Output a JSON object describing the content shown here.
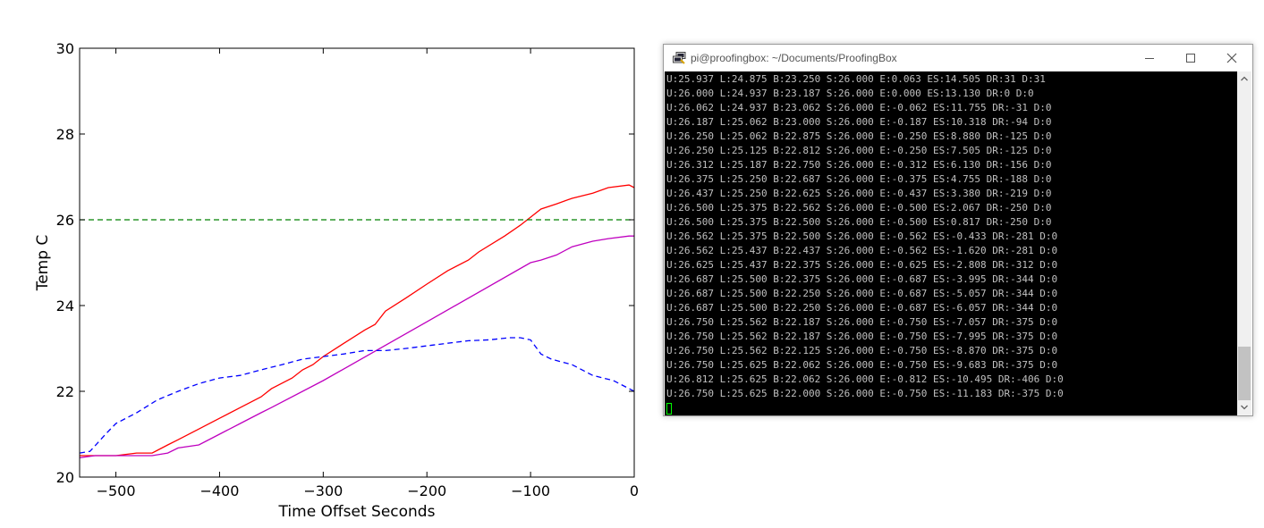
{
  "chart_data": {
    "type": "line",
    "title": "",
    "xlabel": "Time Offset Seconds",
    "ylabel": "Temp C",
    "xlim": [
      -535,
      0
    ],
    "ylim": [
      20,
      30
    ],
    "xticks": [
      -500,
      -400,
      -300,
      -200,
      -100,
      0
    ],
    "xtick_labels": [
      "−500",
      "−400",
      "−300",
      "−200",
      "−100",
      "0"
    ],
    "yticks": [
      20,
      22,
      24,
      26,
      28,
      30
    ],
    "ytick_labels": [
      "20",
      "22",
      "24",
      "26",
      "28",
      "30"
    ],
    "grid": false,
    "legend": "none",
    "series": [
      {
        "color": "#ff0000",
        "style": "solid",
        "x": [
          -535,
          -520,
          -500,
          -480,
          -465,
          -450,
          -440,
          -420,
          -400,
          -380,
          -360,
          -350,
          -330,
          -320,
          -310,
          -300,
          -280,
          -260,
          -250,
          -240,
          -220,
          -200,
          -180,
          -160,
          -150,
          -125,
          -110,
          -100,
          -90,
          -75,
          -60,
          -40,
          -25,
          -5,
          0
        ],
        "y": [
          20.5,
          20.5,
          20.5,
          20.56,
          20.56,
          20.75,
          20.87,
          21.12,
          21.37,
          21.62,
          21.87,
          22.06,
          22.31,
          22.5,
          22.62,
          22.81,
          23.12,
          23.43,
          23.56,
          23.87,
          24.18,
          24.5,
          24.81,
          25.06,
          25.25,
          25.62,
          25.87,
          26.06,
          26.25,
          26.37,
          26.5,
          26.62,
          26.75,
          26.81,
          26.75
        ]
      },
      {
        "color": "#bf00bf",
        "style": "solid",
        "x": [
          -535,
          -520,
          -465,
          -450,
          -440,
          -420,
          -400,
          -380,
          -360,
          -350,
          -300,
          -200,
          -100,
          -90,
          -75,
          -60,
          -40,
          -25,
          -5,
          0
        ],
        "y": [
          20.45,
          20.5,
          20.5,
          20.56,
          20.68,
          20.75,
          21.0,
          21.25,
          21.5,
          21.62,
          22.25,
          23.62,
          25.0,
          25.06,
          25.18,
          25.37,
          25.5,
          25.56,
          25.62,
          25.62
        ]
      },
      {
        "color": "#0000ff",
        "style": "dashed",
        "x": [
          -535,
          -525,
          -510,
          -500,
          -480,
          -460,
          -440,
          -420,
          -400,
          -380,
          -360,
          -340,
          -320,
          -300,
          -280,
          -260,
          -240,
          -220,
          -200,
          -180,
          -160,
          -140,
          -120,
          -110,
          -100,
          -90,
          -80,
          -60,
          -40,
          -20,
          0
        ],
        "y": [
          20.56,
          20.6,
          21.0,
          21.25,
          21.5,
          21.8,
          22.0,
          22.18,
          22.31,
          22.37,
          22.5,
          22.62,
          22.75,
          22.81,
          22.87,
          22.95,
          22.95,
          23.0,
          23.06,
          23.12,
          23.18,
          23.2,
          23.25,
          23.25,
          23.2,
          22.87,
          22.75,
          22.62,
          22.37,
          22.25,
          22.0
        ]
      },
      {
        "color": "#008000",
        "style": "dashed",
        "x": [
          -535,
          0
        ],
        "y": [
          26,
          26
        ]
      }
    ]
  },
  "terminal": {
    "title": "pi@proofingbox: ~/Documents/ProofingBox",
    "lines": [
      "U:25.937 L:24.875 B:23.250 S:26.000 E:0.063 ES:14.505 DR:31 D:31",
      "U:26.000 L:24.937 B:23.187 S:26.000 E:0.000 ES:13.130 DR:0 D:0",
      "U:26.062 L:24.937 B:23.062 S:26.000 E:-0.062 ES:11.755 DR:-31 D:0",
      "U:26.187 L:25.062 B:23.000 S:26.000 E:-0.187 ES:10.318 DR:-94 D:0",
      "U:26.250 L:25.062 B:22.875 S:26.000 E:-0.250 ES:8.880 DR:-125 D:0",
      "U:26.250 L:25.125 B:22.812 S:26.000 E:-0.250 ES:7.505 DR:-125 D:0",
      "U:26.312 L:25.187 B:22.750 S:26.000 E:-0.312 ES:6.130 DR:-156 D:0",
      "U:26.375 L:25.250 B:22.687 S:26.000 E:-0.375 ES:4.755 DR:-188 D:0",
      "U:26.437 L:25.250 B:22.625 S:26.000 E:-0.437 ES:3.380 DR:-219 D:0",
      "U:26.500 L:25.375 B:22.562 S:26.000 E:-0.500 ES:2.067 DR:-250 D:0",
      "U:26.500 L:25.375 B:22.500 S:26.000 E:-0.500 ES:0.817 DR:-250 D:0",
      "U:26.562 L:25.375 B:22.500 S:26.000 E:-0.562 ES:-0.433 DR:-281 D:0",
      "U:26.562 L:25.437 B:22.437 S:26.000 E:-0.562 ES:-1.620 DR:-281 D:0",
      "U:26.625 L:25.437 B:22.375 S:26.000 E:-0.625 ES:-2.808 DR:-312 D:0",
      "U:26.687 L:25.500 B:22.375 S:26.000 E:-0.687 ES:-3.995 DR:-344 D:0",
      "U:26.687 L:25.500 B:22.250 S:26.000 E:-0.687 ES:-5.057 DR:-344 D:0",
      "U:26.687 L:25.500 B:22.250 S:26.000 E:-0.687 ES:-6.057 DR:-344 D:0",
      "U:26.750 L:25.562 B:22.187 S:26.000 E:-0.750 ES:-7.057 DR:-375 D:0",
      "U:26.750 L:25.562 B:22.187 S:26.000 E:-0.750 ES:-7.995 DR:-375 D:0",
      "U:26.750 L:25.562 B:22.125 S:26.000 E:-0.750 ES:-8.870 DR:-375 D:0",
      "U:26.750 L:25.625 B:22.062 S:26.000 E:-0.750 ES:-9.683 DR:-375 D:0",
      "U:26.812 L:25.625 B:22.062 S:26.000 E:-0.812 ES:-10.495 DR:-406 D:0",
      "U:26.750 L:25.625 B:22.000 S:26.000 E:-0.750 ES:-11.183 DR:-375 D:0"
    ],
    "cursor_color": "#00ff00",
    "background": "#000000",
    "text_color": "#c0c0c0"
  },
  "icons": {
    "app": "putty-icon",
    "minimize": "minimize-icon",
    "maximize": "maximize-icon",
    "close": "close-icon",
    "scroll_up": "chevron-up-icon",
    "scroll_down": "chevron-down-icon"
  }
}
